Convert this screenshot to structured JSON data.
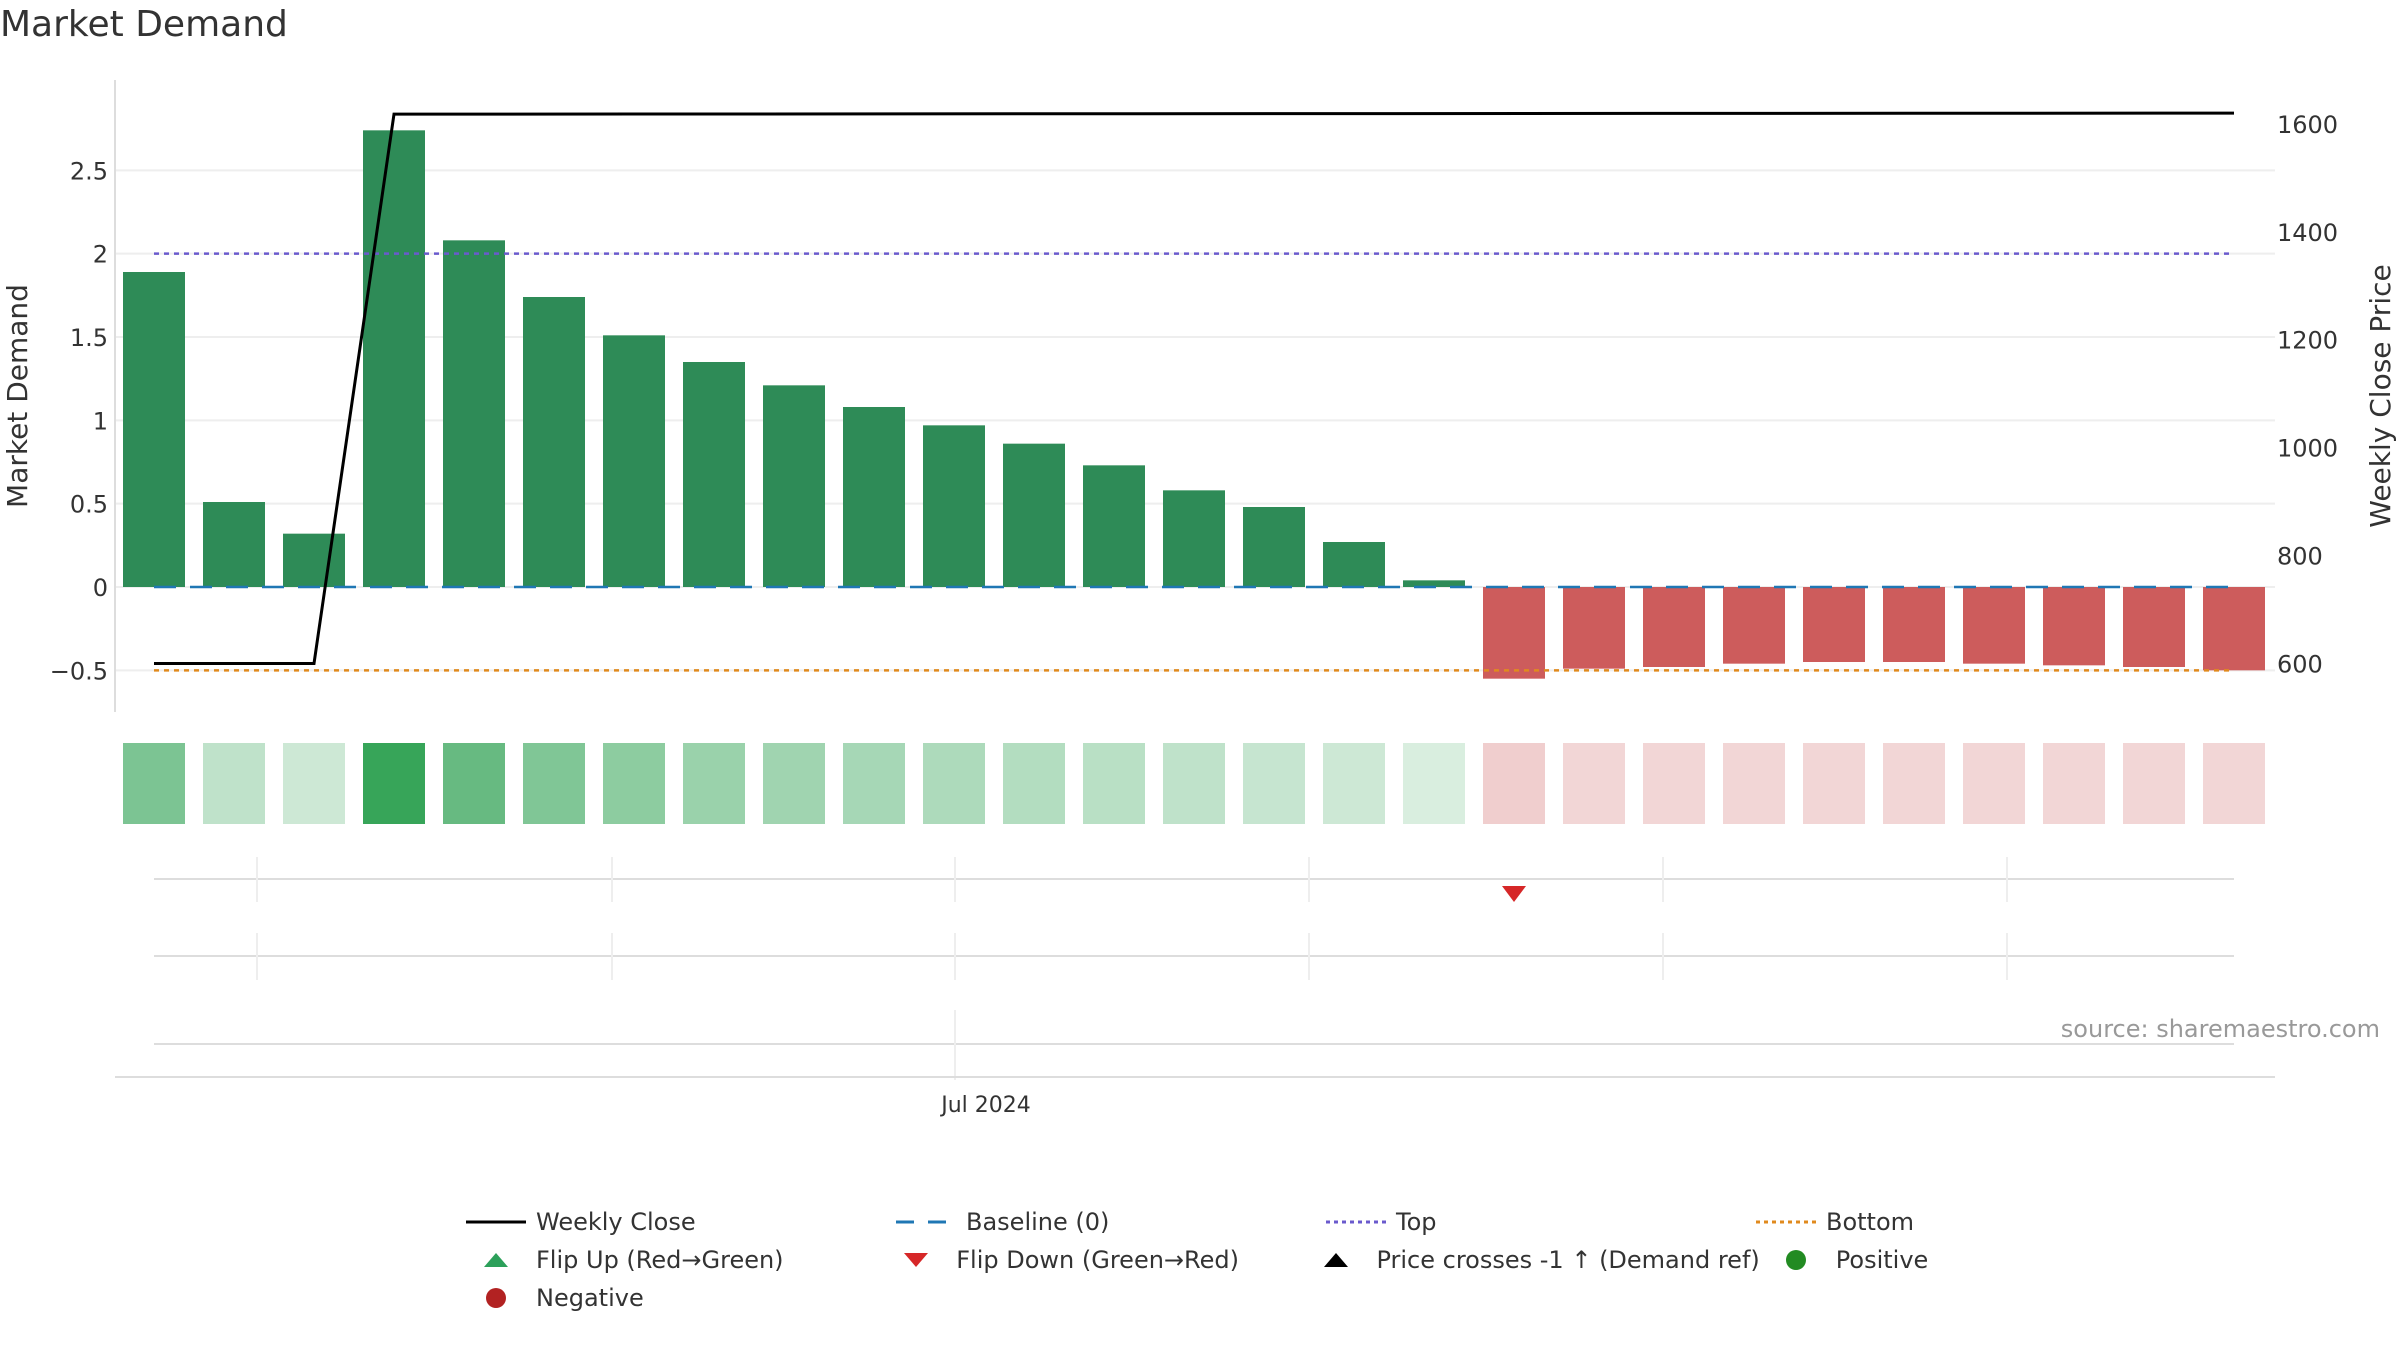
{
  "title": "Market Demand",
  "source": "source: sharemaestro.com",
  "colors": {
    "positive_bar": "#2e8b57",
    "negative_bar": "#cd5c5c",
    "close": "#000000",
    "baseline": "#1f77b4",
    "top": "#6a5acd",
    "bottom": "#e08a1e",
    "flip_up": "#2ca05a",
    "flip_down": "#d62728",
    "cross": "#000000",
    "positive_dot": "#228b22",
    "negative_dot": "#b22222"
  },
  "legend": [
    {
      "id": "weekly-close",
      "label": "Weekly Close",
      "symbol": "line-solid",
      "color": "#000000"
    },
    {
      "id": "baseline",
      "label": "Baseline (0)",
      "symbol": "line-dash",
      "color": "#1f77b4"
    },
    {
      "id": "top",
      "label": "Top",
      "symbol": "line-dot",
      "color": "#6a5acd"
    },
    {
      "id": "bottom",
      "label": "Bottom",
      "symbol": "line-dot",
      "color": "#e08a1e"
    },
    {
      "id": "flip-up",
      "label": "Flip Up (Red→Green)",
      "symbol": "triangle-up",
      "color": "#2ca05a"
    },
    {
      "id": "flip-down",
      "label": "Flip Down (Green→Red)",
      "symbol": "triangle-down",
      "color": "#d62728"
    },
    {
      "id": "price-crosses",
      "label": "Price crosses -1 ↑ (Demand ref)",
      "symbol": "triangle-up",
      "color": "#000000"
    },
    {
      "id": "positive",
      "label": "Positive",
      "symbol": "circle",
      "color": "#228b22"
    },
    {
      "id": "negative",
      "label": "Negative",
      "symbol": "circle",
      "color": "#b22222"
    }
  ],
  "chart_data": {
    "type": "bar",
    "title": "Market Demand",
    "ylabel": "Market Demand",
    "y2label": "Weekly Close Price",
    "ylim": [
      -0.75,
      2.85
    ],
    "y2lim": [
      510,
      1622
    ],
    "yticks": [
      "−0.5",
      "0",
      "0.5",
      "1",
      "1.5",
      "2",
      "2.5"
    ],
    "ytick_values": [
      -0.5,
      0,
      0.5,
      1,
      1.5,
      2,
      2.5
    ],
    "y2ticks": [
      "600",
      "800",
      "1000",
      "1200",
      "1400",
      "1600"
    ],
    "y2tick_values": [
      600,
      800,
      1000,
      1200,
      1400,
      1600
    ],
    "xtick_label": "Jul 2024",
    "xtick_index": 10.4,
    "grid": true,
    "legend_position": "bottom",
    "bar_count": 27,
    "values": [
      1.89,
      0.51,
      0.32,
      2.74,
      2.08,
      1.74,
      1.51,
      1.35,
      1.21,
      1.08,
      0.97,
      0.86,
      0.73,
      0.58,
      0.48,
      0.27,
      0.04,
      -0.55,
      -0.49,
      -0.48,
      -0.46,
      -0.45,
      -0.45,
      -0.46,
      -0.47,
      -0.48,
      -0.5
    ],
    "series": [
      {
        "name": "Weekly Close",
        "type": "line",
        "x": [
          0,
          2,
          3,
          26
        ],
        "values": [
          600,
          600,
          1618,
          1620
        ]
      }
    ],
    "reference_lines": [
      {
        "name": "Baseline (0)",
        "value": 0
      },
      {
        "name": "Top",
        "value": 2
      },
      {
        "name": "Bottom",
        "value": -0.5
      }
    ],
    "strength_strip": [
      0.62,
      0.3,
      0.24,
      0.95,
      0.72,
      0.6,
      0.54,
      0.48,
      0.45,
      0.42,
      0.39,
      0.36,
      0.33,
      0.3,
      0.27,
      0.24,
      0.18,
      0.3,
      0.25,
      0.25,
      0.25,
      0.25,
      0.25,
      0.25,
      0.25,
      0.25,
      0.25
    ],
    "flip_markers": [
      {
        "type": "Flip Down (Green→Red)",
        "index": 17
      }
    ]
  }
}
